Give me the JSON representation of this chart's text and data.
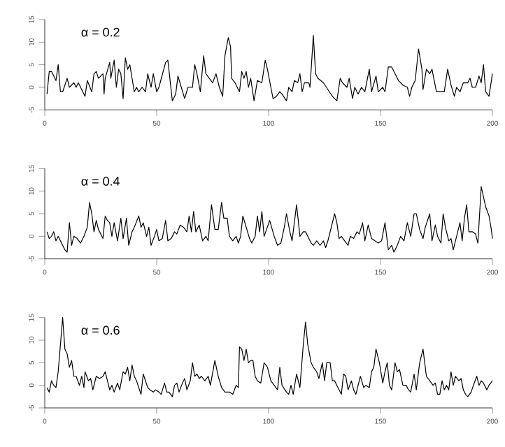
{
  "chart_data": [
    {
      "type": "line",
      "annotations": [
        "α = 0.2"
      ],
      "xlim": [
        0,
        200
      ],
      "xticks": [
        0,
        50,
        100,
        150,
        200
      ],
      "ylim": [
        -5,
        15
      ],
      "yticks": [
        -5,
        0,
        5,
        10,
        15
      ],
      "marker": "none",
      "line_style": "solid",
      "series": [
        {
          "color": "#000000",
          "x": [
            1,
            2,
            3,
            5,
            6,
            7,
            8,
            10,
            11,
            13,
            14,
            15,
            16,
            18,
            19,
            21,
            22,
            23,
            24,
            26,
            26.5,
            27,
            29,
            29.5,
            31,
            32,
            33,
            34,
            35,
            36,
            37,
            38,
            40,
            41,
            42,
            43.5,
            45,
            46,
            47.5,
            48.5,
            50,
            51,
            54,
            55,
            57,
            58.5,
            59.5,
            61,
            62.5,
            64,
            66,
            67,
            68,
            69.5,
            71,
            72,
            73.5,
            75,
            76.5,
            78,
            79.5,
            80.5,
            82,
            83,
            83.5,
            85,
            87,
            88,
            89,
            90,
            91,
            92,
            93.5,
            95,
            97,
            98.5,
            99.5,
            101,
            102,
            103.5,
            105,
            106,
            108,
            109,
            110.5,
            111.5,
            113,
            114,
            115,
            116,
            118,
            118.5,
            120,
            121,
            122,
            124.5,
            126.5,
            128.5,
            130.5,
            132,
            133,
            135,
            136,
            137.5,
            138.5,
            140,
            141.5,
            143,
            145,
            146,
            148,
            149,
            151,
            152,
            153.5,
            155,
            156.5,
            158,
            160,
            162,
            163,
            164,
            165.5,
            167,
            168.5,
            169,
            170.5,
            172,
            173,
            175,
            176.5,
            178.5,
            180,
            181.5,
            183,
            184,
            185.5,
            187,
            189,
            190,
            191,
            192.5,
            194,
            195,
            196,
            197,
            198.5,
            200
          ],
          "values": [
            -1.5,
            3.5,
            3.5,
            1.5,
            5,
            -1,
            -1,
            2,
            0,
            1,
            0,
            1,
            0,
            -2,
            1.5,
            -1,
            3,
            3.5,
            2,
            3,
            -1.5,
            2,
            5.5,
            2,
            6,
            0,
            4,
            3,
            -2.5,
            6.5,
            4,
            5,
            -1,
            0,
            -1,
            0,
            -1,
            3,
            0,
            3,
            -1,
            0,
            5.5,
            6,
            -3,
            -1.5,
            2.5,
            0,
            -2.5,
            0,
            0,
            5,
            3,
            -1,
            7,
            3,
            2,
            1,
            3,
            0,
            -2,
            7,
            11,
            9,
            2,
            1,
            -1,
            3.5,
            2,
            3.5,
            0,
            2,
            -3,
            1.5,
            1,
            6,
            4,
            0,
            -2.5,
            -2,
            -1,
            -1.5,
            -3,
            0,
            -1,
            1.5,
            1,
            3,
            -1,
            1,
            1,
            0,
            11.5,
            3,
            2,
            1,
            -0.5,
            -2,
            -3,
            2,
            1,
            0,
            2,
            -2.5,
            0,
            -1.5,
            0,
            -1,
            4,
            -1,
            2.5,
            -1,
            0,
            -1,
            4.5,
            4.5,
            3,
            1.5,
            0.5,
            0,
            -2,
            0,
            1.5,
            8.5,
            4,
            -0.5,
            4,
            3,
            4,
            -1,
            -1,
            -1,
            4,
            0.5,
            -2,
            0,
            -1,
            1,
            1,
            2,
            0,
            0,
            2.5,
            1,
            5,
            -1,
            -2,
            3
          ]
        }
      ]
    },
    {
      "type": "line",
      "annotations": [
        "α = 0.4"
      ],
      "xlim": [
        0,
        200
      ],
      "xticks": [
        0,
        50,
        100,
        150,
        200
      ],
      "ylim": [
        -5,
        15
      ],
      "yticks": [
        -5,
        0,
        5,
        10,
        15
      ],
      "marker": "none",
      "line_style": "solid",
      "series": [
        {
          "color": "#000000",
          "x": [
            1,
            2,
            3,
            4,
            5,
            6,
            7.5,
            9,
            10,
            11,
            12,
            13,
            14.5,
            16,
            17.5,
            19,
            20,
            21,
            22,
            23,
            24,
            26,
            27,
            28,
            29,
            30,
            31,
            32.5,
            34,
            35,
            36.5,
            37.5,
            39,
            40,
            42,
            43,
            44,
            45.5,
            46.5,
            47.5,
            49,
            50,
            51,
            52.5,
            54,
            55,
            56.5,
            58,
            59,
            60.5,
            62,
            63.5,
            64.5,
            65.5,
            66.5,
            67.5,
            69,
            70.5,
            72,
            73,
            74.5,
            76,
            77.5,
            79,
            80,
            81.5,
            82.5,
            84,
            85.5,
            86.5,
            87.5,
            88.5,
            90,
            91.5,
            92.5,
            94,
            95,
            96,
            97,
            98,
            100.5,
            102.5,
            104,
            105.5,
            107,
            108,
            109.5,
            110.5,
            112.5,
            114,
            115.5,
            116.5,
            117.5,
            119,
            120,
            121.5,
            123,
            124.5,
            125.5,
            126.5,
            128,
            129.5,
            130.5,
            131.5,
            132.5,
            134,
            135.5,
            136.5,
            138,
            139.5,
            140.5,
            142,
            143,
            144.5,
            146,
            147.5,
            149,
            150.5,
            152,
            153.5,
            155,
            156,
            157.5,
            159,
            160.5,
            162,
            163.5,
            165,
            166,
            167.5,
            169,
            170,
            172,
            173,
            174.5,
            175.5,
            177,
            178,
            179,
            180.5,
            181.5,
            182.5,
            184,
            185.5,
            186.5,
            187.5,
            188.5,
            189.5,
            191,
            192.5,
            193.5,
            195,
            197,
            198.5,
            199.5,
            200
          ],
          "values": [
            1,
            -0.5,
            0,
            1,
            -1,
            0,
            -1.5,
            -3,
            -3.5,
            3,
            -2,
            0,
            -0.5,
            -1.5,
            0,
            2,
            7.5,
            5,
            1,
            3.5,
            1.5,
            -0.5,
            4.5,
            3.5,
            3,
            0,
            3,
            -1,
            4,
            -0.5,
            4,
            -2,
            1,
            2,
            4.5,
            2,
            3,
            0,
            2,
            -2,
            0,
            1.5,
            -1,
            -0.5,
            3.5,
            -1,
            -0.5,
            1,
            0.5,
            2.5,
            2,
            1,
            4.5,
            1,
            5.5,
            1,
            2.5,
            -1,
            0,
            -1,
            7,
            1.5,
            1.5,
            7.5,
            4,
            4,
            0,
            -1,
            0,
            -1.5,
            0,
            4.5,
            2,
            -0.5,
            -1.5,
            0,
            4.5,
            1,
            5.5,
            0,
            3.5,
            0,
            -2,
            -1.5,
            2,
            5,
            1,
            -1,
            7,
            0,
            1,
            1,
            0,
            -1.5,
            -2,
            -1,
            -2,
            -1,
            -2.5,
            -1,
            2,
            5,
            3,
            -0.5,
            0,
            -1,
            -2,
            0,
            -0.5,
            1,
            0.5,
            3,
            -1,
            2.5,
            -0.5,
            -1,
            -1.5,
            -1,
            3,
            -3,
            -2,
            -3.5,
            -2,
            0,
            -1,
            3,
            0,
            5,
            5,
            1.5,
            -0.5,
            2,
            5,
            -1,
            2.5,
            0,
            -1.5,
            5,
            2,
            -1,
            -0.5,
            -3,
            0,
            3,
            -1,
            4,
            7,
            1,
            1,
            0.5,
            -1.5,
            11,
            6.5,
            4.5,
            1.5,
            -0.5
          ]
        }
      ]
    },
    {
      "type": "line",
      "annotations": [
        "α = 0.6"
      ],
      "xlim": [
        0,
        200
      ],
      "xticks": [
        0,
        50,
        100,
        150,
        200
      ],
      "ylim": [
        -5,
        15
      ],
      "yticks": [
        -5,
        0,
        5,
        10,
        15
      ],
      "marker": "none",
      "line_style": "solid",
      "series": [
        {
          "color": "#000000",
          "x": [
            1,
            2,
            3,
            4,
            5,
            6,
            7,
            8,
            9,
            10,
            11,
            12,
            13,
            14,
            15.5,
            16.5,
            17.5,
            18,
            19.5,
            20.5,
            21.5,
            23,
            24.5,
            26,
            27,
            28,
            29,
            30,
            31,
            32.5,
            33.5,
            35,
            36,
            37,
            38,
            39,
            40,
            41,
            43,
            44,
            45,
            46,
            47,
            48.5,
            49.5,
            51,
            52,
            53.5,
            54.5,
            55.5,
            57,
            58,
            59,
            60,
            61.5,
            62.5,
            63.5,
            65,
            66,
            67,
            68,
            69,
            70,
            71.5,
            73,
            74,
            76,
            77.5,
            79,
            80.5,
            82.5,
            84,
            85.5,
            86.5,
            87,
            88,
            89,
            90,
            91,
            92,
            93,
            94,
            95,
            96.5,
            98,
            99.5,
            101,
            102.5,
            104,
            105,
            106,
            108,
            109,
            110,
            111,
            112.5,
            114,
            115.5,
            116.5,
            117.5,
            119,
            120,
            121.5,
            122.5,
            124,
            125,
            126,
            127.5,
            128.5,
            129.5,
            131,
            132.5,
            133.5,
            134.5,
            135.5,
            137,
            138,
            139,
            140,
            141,
            142.5,
            143.5,
            145,
            146,
            147,
            148,
            149.5,
            151,
            152,
            153,
            154,
            155,
            156.5,
            157.5,
            158.5,
            160,
            161.5,
            162.5,
            163.5,
            165,
            166,
            167.5,
            169,
            170.5,
            172,
            173.5,
            174.5,
            175.5,
            176.5,
            177.5,
            178.5,
            179.5,
            180.5,
            181.5,
            182.5,
            183.5,
            185,
            186,
            187,
            188,
            189,
            190.5,
            191.5,
            193,
            194,
            195,
            196,
            197.5,
            198.5,
            200
          ],
          "values": [
            -0.5,
            -1.5,
            1,
            0,
            -0.5,
            3,
            9,
            15,
            8,
            7,
            4,
            5.5,
            2,
            2,
            0,
            2,
            -0.5,
            3,
            1,
            1.5,
            -1,
            2,
            1.5,
            2,
            3,
            1,
            -1,
            0,
            -1.5,
            0.5,
            -1,
            3,
            2.5,
            4,
            1,
            4.5,
            2,
            1,
            -2,
            2.5,
            1,
            -0.5,
            -1,
            -1.5,
            -1,
            -1.5,
            -2,
            0.5,
            -1.5,
            -1.5,
            -2.5,
            0,
            0.5,
            -1.5,
            0.5,
            1.5,
            -1,
            1,
            5,
            2,
            2.5,
            1.5,
            2,
            1,
            2,
            0,
            5.5,
            2,
            -0.5,
            -1.5,
            -1.5,
            -2,
            0,
            -0.5,
            8.5,
            8,
            5.5,
            8,
            5,
            5.5,
            5.5,
            2,
            1,
            0.5,
            5,
            4,
            1,
            0,
            -1,
            4,
            0,
            -1.5,
            -2,
            0,
            -2,
            2.5,
            -0.5,
            9,
            14,
            9,
            5,
            4,
            3,
            1.5,
            5,
            1,
            5,
            5,
            1,
            1,
            -0.5,
            -2,
            2.5,
            2,
            -1,
            1,
            -1,
            -2,
            0,
            2,
            -0.5,
            0,
            -0.5,
            3,
            4,
            8,
            5,
            0.5,
            3,
            5,
            0,
            -1,
            5,
            3,
            3.5,
            0,
            0,
            -1,
            -1.5,
            2.5,
            -1,
            5,
            8,
            2,
            1,
            0,
            0.5,
            -2,
            -2,
            1,
            -1,
            0,
            -1,
            3,
            0,
            2,
            1,
            1.5,
            -1,
            -2,
            -2.5,
            -1.5,
            0,
            2,
            0,
            1,
            0.5,
            -1,
            0,
            1
          ]
        }
      ]
    }
  ]
}
